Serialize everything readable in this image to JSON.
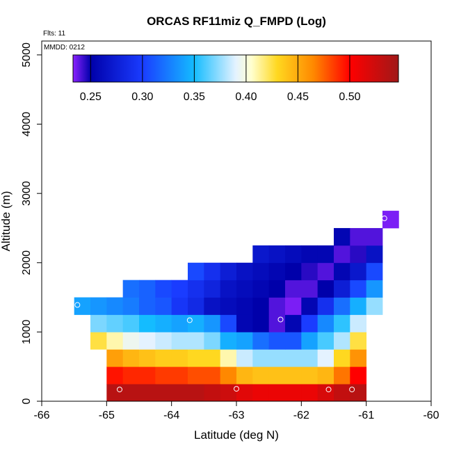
{
  "chart_data": {
    "type": "heatmap",
    "title": "ORCAS RF11miz Q_FMPD (Log)",
    "annotations": [
      "Flts: 11",
      "MMDD: 0212"
    ],
    "xlabel": "Latitude (deg N)",
    "ylabel": "Altitude (m)",
    "xlim": [
      -66,
      -60
    ],
    "ylim": [
      0,
      5200
    ],
    "xticks": [
      -66,
      -65,
      -64,
      -63,
      -62,
      -61,
      -60
    ],
    "yticks": [
      0,
      1000,
      2000,
      3000,
      4000,
      5000
    ],
    "grid": false,
    "colorbar": {
      "min": 0.233,
      "max": 0.547,
      "ticks": [
        0.25,
        0.3,
        0.35,
        0.4,
        0.45,
        0.5
      ],
      "tick_labels": [
        "0.25",
        "0.30",
        "0.35",
        "0.40",
        "0.45",
        "0.50"
      ],
      "stops": [
        {
          "v": 0.233,
          "c": "#8b22ff"
        },
        {
          "v": 0.25,
          "c": "#0000aa"
        },
        {
          "v": 0.3,
          "c": "#1a3cff"
        },
        {
          "v": 0.35,
          "c": "#14bcff"
        },
        {
          "v": 0.39,
          "c": "#e4f2ff"
        },
        {
          "v": 0.405,
          "c": "#ffffd0"
        },
        {
          "v": 0.43,
          "c": "#ffd820"
        },
        {
          "v": 0.465,
          "c": "#ff8800"
        },
        {
          "v": 0.5,
          "c": "#ff0000"
        },
        {
          "v": 0.547,
          "c": "#a01818"
        }
      ]
    },
    "x_bin_width": 0.25,
    "y_bin_height": 250,
    "cells": [
      {
        "x": -65.0,
        "y": 0,
        "v": 0.535
      },
      {
        "x": -64.75,
        "y": 0,
        "v": 0.535
      },
      {
        "x": -64.5,
        "y": 0,
        "v": 0.535
      },
      {
        "x": -64.25,
        "y": 0,
        "v": 0.535
      },
      {
        "x": -64.0,
        "y": 0,
        "v": 0.535
      },
      {
        "x": -63.75,
        "y": 0,
        "v": 0.535
      },
      {
        "x": -63.5,
        "y": 0,
        "v": 0.53
      },
      {
        "x": -63.25,
        "y": 0,
        "v": 0.525
      },
      {
        "x": -63.0,
        "y": 0,
        "v": 0.515
      },
      {
        "x": -62.75,
        "y": 0,
        "v": 0.51
      },
      {
        "x": -62.5,
        "y": 0,
        "v": 0.51
      },
      {
        "x": -62.25,
        "y": 0,
        "v": 0.51
      },
      {
        "x": -62.0,
        "y": 0,
        "v": 0.51
      },
      {
        "x": -61.75,
        "y": 0,
        "v": 0.52
      },
      {
        "x": -61.5,
        "y": 0,
        "v": 0.53
      },
      {
        "x": -61.25,
        "y": 0,
        "v": 0.535
      },
      {
        "x": -65.0,
        "y": 250,
        "v": 0.495
      },
      {
        "x": -64.75,
        "y": 250,
        "v": 0.49
      },
      {
        "x": -64.5,
        "y": 250,
        "v": 0.49
      },
      {
        "x": -64.25,
        "y": 250,
        "v": 0.485
      },
      {
        "x": -64.0,
        "y": 250,
        "v": 0.485
      },
      {
        "x": -63.75,
        "y": 250,
        "v": 0.48
      },
      {
        "x": -63.5,
        "y": 250,
        "v": 0.48
      },
      {
        "x": -63.25,
        "y": 250,
        "v": 0.465
      },
      {
        "x": -63.0,
        "y": 250,
        "v": 0.445
      },
      {
        "x": -62.75,
        "y": 250,
        "v": 0.44
      },
      {
        "x": -62.5,
        "y": 250,
        "v": 0.44
      },
      {
        "x": -62.25,
        "y": 250,
        "v": 0.44
      },
      {
        "x": -62.0,
        "y": 250,
        "v": 0.44
      },
      {
        "x": -61.75,
        "y": 250,
        "v": 0.445
      },
      {
        "x": -61.5,
        "y": 250,
        "v": 0.47
      },
      {
        "x": -61.25,
        "y": 250,
        "v": 0.5
      },
      {
        "x": -65.0,
        "y": 500,
        "v": 0.455
      },
      {
        "x": -64.75,
        "y": 500,
        "v": 0.445
      },
      {
        "x": -64.5,
        "y": 500,
        "v": 0.44
      },
      {
        "x": -64.25,
        "y": 500,
        "v": 0.435
      },
      {
        "x": -64.0,
        "y": 500,
        "v": 0.435
      },
      {
        "x": -63.75,
        "y": 500,
        "v": 0.43
      },
      {
        "x": -63.5,
        "y": 500,
        "v": 0.43
      },
      {
        "x": -63.25,
        "y": 500,
        "v": 0.41
      },
      {
        "x": -63.0,
        "y": 500,
        "v": 0.385
      },
      {
        "x": -62.75,
        "y": 500,
        "v": 0.375
      },
      {
        "x": -62.5,
        "y": 500,
        "v": 0.375
      },
      {
        "x": -62.25,
        "y": 500,
        "v": 0.375
      },
      {
        "x": -62.0,
        "y": 500,
        "v": 0.375
      },
      {
        "x": -61.75,
        "y": 500,
        "v": 0.39
      },
      {
        "x": -61.5,
        "y": 500,
        "v": 0.43
      },
      {
        "x": -61.25,
        "y": 500,
        "v": 0.46
      },
      {
        "x": -65.25,
        "y": 750,
        "v": 0.425
      },
      {
        "x": -65.0,
        "y": 750,
        "v": 0.41
      },
      {
        "x": -64.75,
        "y": 750,
        "v": 0.395
      },
      {
        "x": -64.5,
        "y": 750,
        "v": 0.39
      },
      {
        "x": -64.25,
        "y": 750,
        "v": 0.385
      },
      {
        "x": -64.0,
        "y": 750,
        "v": 0.38
      },
      {
        "x": -63.75,
        "y": 750,
        "v": 0.38
      },
      {
        "x": -63.5,
        "y": 750,
        "v": 0.37
      },
      {
        "x": -63.25,
        "y": 750,
        "v": 0.345
      },
      {
        "x": -63.0,
        "y": 750,
        "v": 0.34
      },
      {
        "x": -62.75,
        "y": 750,
        "v": 0.32
      },
      {
        "x": -62.5,
        "y": 750,
        "v": 0.31
      },
      {
        "x": -62.25,
        "y": 750,
        "v": 0.31
      },
      {
        "x": -62.0,
        "y": 750,
        "v": 0.34
      },
      {
        "x": -61.75,
        "y": 750,
        "v": 0.36
      },
      {
        "x": -61.5,
        "y": 750,
        "v": 0.38
      },
      {
        "x": -61.25,
        "y": 750,
        "v": 0.425
      },
      {
        "x": -65.25,
        "y": 1000,
        "v": 0.37
      },
      {
        "x": -65.0,
        "y": 1000,
        "v": 0.365
      },
      {
        "x": -64.75,
        "y": 1000,
        "v": 0.36
      },
      {
        "x": -64.5,
        "y": 1000,
        "v": 0.35
      },
      {
        "x": -64.25,
        "y": 1000,
        "v": 0.345
      },
      {
        "x": -64.0,
        "y": 1000,
        "v": 0.34
      },
      {
        "x": -63.75,
        "y": 1000,
        "v": 0.345
      },
      {
        "x": -63.5,
        "y": 1000,
        "v": 0.335
      },
      {
        "x": -63.25,
        "y": 1000,
        "v": 0.305
      },
      {
        "x": -63.0,
        "y": 1000,
        "v": 0.255
      },
      {
        "x": -62.75,
        "y": 1000,
        "v": 0.25
      },
      {
        "x": -62.5,
        "y": 1000,
        "v": 0.24
      },
      {
        "x": -62.25,
        "y": 1000,
        "v": 0.255
      },
      {
        "x": -62.0,
        "y": 1000,
        "v": 0.3
      },
      {
        "x": -61.75,
        "y": 1000,
        "v": 0.33
      },
      {
        "x": -61.5,
        "y": 1000,
        "v": 0.355
      },
      {
        "x": -61.25,
        "y": 1000,
        "v": 0.385
      },
      {
        "x": -65.5,
        "y": 1250,
        "v": 0.34
      },
      {
        "x": -65.25,
        "y": 1250,
        "v": 0.335
      },
      {
        "x": -65.0,
        "y": 1250,
        "v": 0.33
      },
      {
        "x": -64.75,
        "y": 1250,
        "v": 0.325
      },
      {
        "x": -64.5,
        "y": 1250,
        "v": 0.315
      },
      {
        "x": -64.25,
        "y": 1250,
        "v": 0.31
      },
      {
        "x": -64.0,
        "y": 1250,
        "v": 0.295
      },
      {
        "x": -63.75,
        "y": 1250,
        "v": 0.285
      },
      {
        "x": -63.5,
        "y": 1250,
        "v": 0.265
      },
      {
        "x": -63.25,
        "y": 1250,
        "v": 0.26
      },
      {
        "x": -63.0,
        "y": 1250,
        "v": 0.255
      },
      {
        "x": -62.75,
        "y": 1250,
        "v": 0.25
      },
      {
        "x": -62.5,
        "y": 1250,
        "v": 0.24
      },
      {
        "x": -62.25,
        "y": 1250,
        "v": 0.235
      },
      {
        "x": -62.0,
        "y": 1250,
        "v": 0.255
      },
      {
        "x": -61.75,
        "y": 1250,
        "v": 0.29
      },
      {
        "x": -61.5,
        "y": 1250,
        "v": 0.32
      },
      {
        "x": -61.25,
        "y": 1250,
        "v": 0.345
      },
      {
        "x": -61.0,
        "y": 1250,
        "v": 0.375
      },
      {
        "x": -64.75,
        "y": 1500,
        "v": 0.32
      },
      {
        "x": -64.5,
        "y": 1500,
        "v": 0.315
      },
      {
        "x": -64.25,
        "y": 1500,
        "v": 0.305
      },
      {
        "x": -64.0,
        "y": 1500,
        "v": 0.3
      },
      {
        "x": -63.75,
        "y": 1500,
        "v": 0.29
      },
      {
        "x": -63.5,
        "y": 1500,
        "v": 0.28
      },
      {
        "x": -63.25,
        "y": 1500,
        "v": 0.265
      },
      {
        "x": -63.0,
        "y": 1500,
        "v": 0.26
      },
      {
        "x": -62.75,
        "y": 1500,
        "v": 0.255
      },
      {
        "x": -62.5,
        "y": 1500,
        "v": 0.25
      },
      {
        "x": -62.25,
        "y": 1500,
        "v": 0.24
      },
      {
        "x": -62.0,
        "y": 1500,
        "v": 0.24
      },
      {
        "x": -61.75,
        "y": 1500,
        "v": 0.25
      },
      {
        "x": -61.5,
        "y": 1500,
        "v": 0.275
      },
      {
        "x": -61.25,
        "y": 1500,
        "v": 0.305
      },
      {
        "x": -61.0,
        "y": 1500,
        "v": 0.335
      },
      {
        "x": -63.75,
        "y": 1750,
        "v": 0.305
      },
      {
        "x": -63.5,
        "y": 1750,
        "v": 0.29
      },
      {
        "x": -63.25,
        "y": 1750,
        "v": 0.275
      },
      {
        "x": -63.0,
        "y": 1750,
        "v": 0.265
      },
      {
        "x": -62.75,
        "y": 1750,
        "v": 0.26
      },
      {
        "x": -62.5,
        "y": 1750,
        "v": 0.255
      },
      {
        "x": -62.25,
        "y": 1750,
        "v": 0.25
      },
      {
        "x": -62.0,
        "y": 1750,
        "v": 0.245
      },
      {
        "x": -61.75,
        "y": 1750,
        "v": 0.24
      },
      {
        "x": -61.5,
        "y": 1750,
        "v": 0.255
      },
      {
        "x": -61.25,
        "y": 1750,
        "v": 0.27
      },
      {
        "x": -61.0,
        "y": 1750,
        "v": 0.305
      },
      {
        "x": -62.75,
        "y": 2000,
        "v": 0.27
      },
      {
        "x": -62.5,
        "y": 2000,
        "v": 0.265
      },
      {
        "x": -62.25,
        "y": 2000,
        "v": 0.26
      },
      {
        "x": -62.0,
        "y": 2000,
        "v": 0.255
      },
      {
        "x": -61.75,
        "y": 2000,
        "v": 0.255
      },
      {
        "x": -61.5,
        "y": 2000,
        "v": 0.24
      },
      {
        "x": -61.25,
        "y": 2000,
        "v": 0.245
      },
      {
        "x": -61.0,
        "y": 2000,
        "v": 0.265
      },
      {
        "x": -61.5,
        "y": 2250,
        "v": 0.255
      },
      {
        "x": -61.25,
        "y": 2250,
        "v": 0.24
      },
      {
        "x": -61.0,
        "y": 2250,
        "v": 0.24
      },
      {
        "x": -60.75,
        "y": 2500,
        "v": 0.235
      }
    ],
    "points": [
      {
        "x": -65.45,
        "y": 1390
      },
      {
        "x": -64.8,
        "y": 170
      },
      {
        "x": -63.72,
        "y": 1170
      },
      {
        "x": -63.0,
        "y": 180
      },
      {
        "x": -62.32,
        "y": 1180
      },
      {
        "x": -61.58,
        "y": 170
      },
      {
        "x": -61.22,
        "y": 170
      },
      {
        "x": -60.72,
        "y": 2640
      }
    ]
  }
}
